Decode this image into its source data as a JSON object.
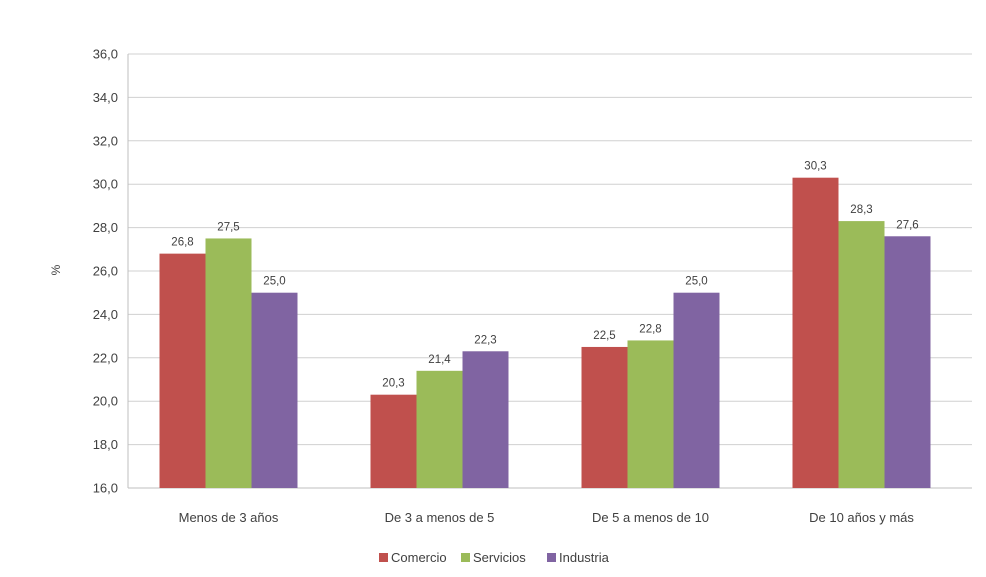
{
  "chart_data": {
    "type": "bar",
    "title": "",
    "xlabel": "",
    "ylabel": "%",
    "ylim": [
      16.0,
      36.0
    ],
    "ytick_step": 2.0,
    "ytick_labels": [
      "16,0",
      "18,0",
      "20,0",
      "22,0",
      "24,0",
      "26,0",
      "28,0",
      "30,0",
      "32,0",
      "34,0",
      "36,0"
    ],
    "grid": true,
    "legend_position": "bottom",
    "categories": [
      "Menos de 3 años",
      "De 3 a menos de 5",
      "De 5 a menos de 10",
      "De 10 años y más"
    ],
    "series": [
      {
        "name": "Comercio",
        "color": "#c0504d",
        "values": [
          26.8,
          20.3,
          22.5,
          30.3
        ],
        "labels": [
          "26,8",
          "20,3",
          "22,5",
          "30,3"
        ]
      },
      {
        "name": "Servicios",
        "color": "#9bbb59",
        "values": [
          27.5,
          21.4,
          22.8,
          28.3
        ],
        "labels": [
          "27,5",
          "21,4",
          "22,8",
          "28,3"
        ]
      },
      {
        "name": "Industria",
        "color": "#8064a2",
        "values": [
          25.0,
          22.3,
          25.0,
          27.6
        ],
        "labels": [
          "25,0",
          "22,3",
          "25,0",
          "27,6"
        ]
      }
    ]
  }
}
